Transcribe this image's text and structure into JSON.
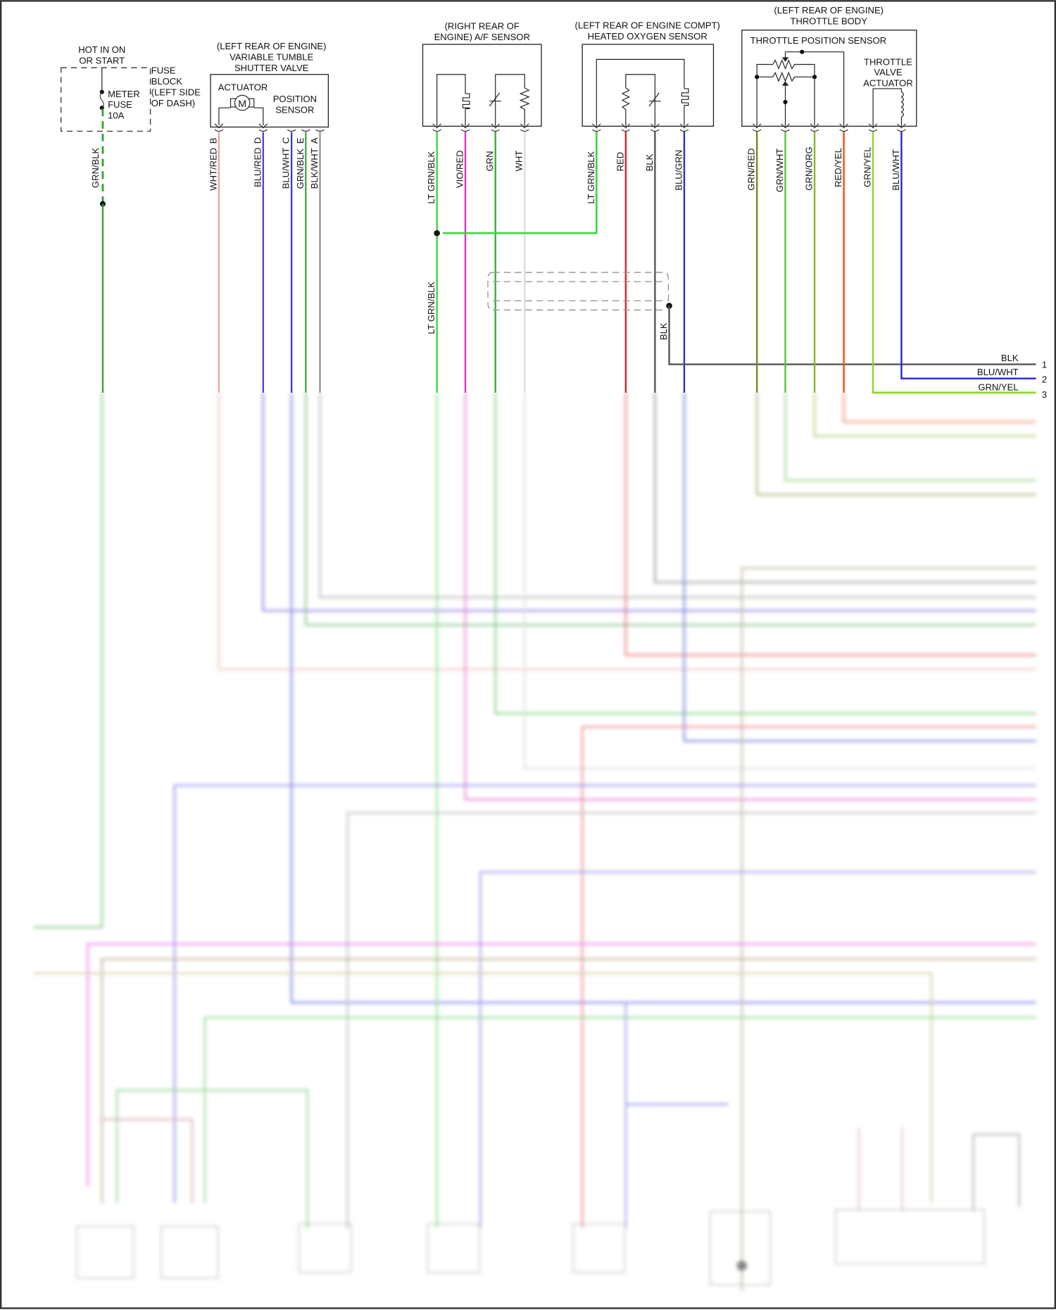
{
  "colors": {
    "wht_red": "#e8a09a",
    "blu_red": "#4a2fd0",
    "blu_wht": "#2a2ae0",
    "grn_blk": "#35a035",
    "blk_wht": "#8a8a8a",
    "lt_grn_blk": "#3fd33f",
    "vio_red": "#e030c0",
    "grn": "#34b034",
    "wht": "#dddddd",
    "red": "#e02020",
    "blk": "#555555",
    "blu_grn": "#2233cc",
    "grn_red": "#6b8c22",
    "grn_wht": "#5cc03a",
    "grn_org": "#8ab32a",
    "red_yel": "#f0501a",
    "grn_yel": "#8fd42a"
  },
  "fuse": {
    "hot_label": [
      "HOT IN ON",
      "OR START"
    ],
    "block_label": [
      "FUSE",
      "BLOCK",
      "(LEFT SIDE",
      "OF DASH)"
    ],
    "fuse_label": [
      "METER",
      "FUSE",
      "10A"
    ],
    "wire": "GRN/BLK"
  },
  "tumble_valve": {
    "title": [
      "(LEFT REAR OF ENGINE)",
      "VARIABLE TUMBLE",
      "SHUTTER VALVE"
    ],
    "actuator": "ACTUATOR",
    "motor": "M",
    "sensor": [
      "POSITION",
      "SENSOR"
    ],
    "pins": [
      {
        "pin": "B",
        "wire": "WHT/RED"
      },
      {
        "pin": "D",
        "wire": "BLU/RED"
      },
      {
        "pin": "C",
        "wire": "BLU/WHT"
      },
      {
        "pin": "E",
        "wire": "GRN/BLK"
      },
      {
        "pin": "A",
        "wire": "BLK/WHT"
      }
    ]
  },
  "af_sensor": {
    "title": [
      "(RIGHT REAR OF",
      "ENGINE) A/F SENSOR"
    ],
    "wires": [
      "LT GRN/BLK",
      "VIO/RED",
      "GRN",
      "WHT"
    ],
    "splice_wire": "LT GRN/BLK"
  },
  "ho2s": {
    "title": [
      "(LEFT REAR OF ENGINE COMPT)",
      "HEATED OXYGEN SENSOR"
    ],
    "wires": [
      "LT GRN/BLK",
      "RED",
      "BLK",
      "BLU/GRN"
    ],
    "shield_wire": "BLK"
  },
  "throttle_body": {
    "title": [
      "(LEFT REAR OF ENGINE)",
      "THROTTLE BODY"
    ],
    "tps": "THROTTLE POSITION SENSOR",
    "actuator": [
      "THROTTLE",
      "VALVE",
      "ACTUATOR"
    ],
    "wires": [
      "GRN/RED",
      "GRN/WHT",
      "GRN/ORG",
      "RED/YEL",
      "GRN/YEL",
      "BLU/WHT"
    ]
  },
  "connector_right": [
    {
      "wire": "BLK",
      "pin": "1"
    },
    {
      "wire": "BLU/WHT",
      "pin": "2"
    },
    {
      "wire": "GRN/YEL",
      "pin": "3"
    }
  ]
}
